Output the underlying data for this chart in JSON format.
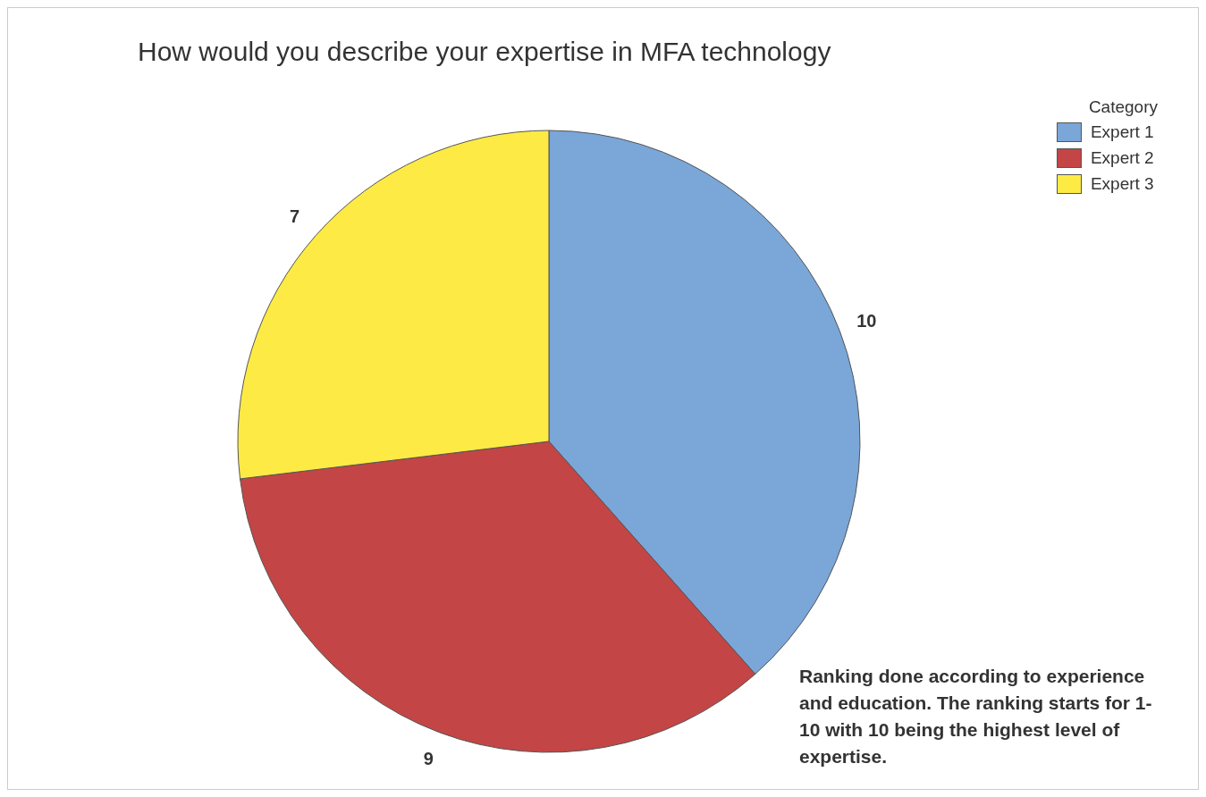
{
  "chart_data": {
    "type": "pie",
    "title": "How would you describe your expertise in MFA technology",
    "legend_title": "Category",
    "categories": [
      "Expert 1",
      "Expert 2",
      "Expert 3"
    ],
    "values": [
      10,
      9,
      7
    ],
    "colors": [
      "#7ba6d8",
      "#c44545",
      "#fdea45"
    ],
    "data_labels": true,
    "legend": "top right",
    "annotations": [
      "Ranking done according to experience and education. The ranking starts for 1-10 with 10 being the highest level of expertise."
    ]
  }
}
